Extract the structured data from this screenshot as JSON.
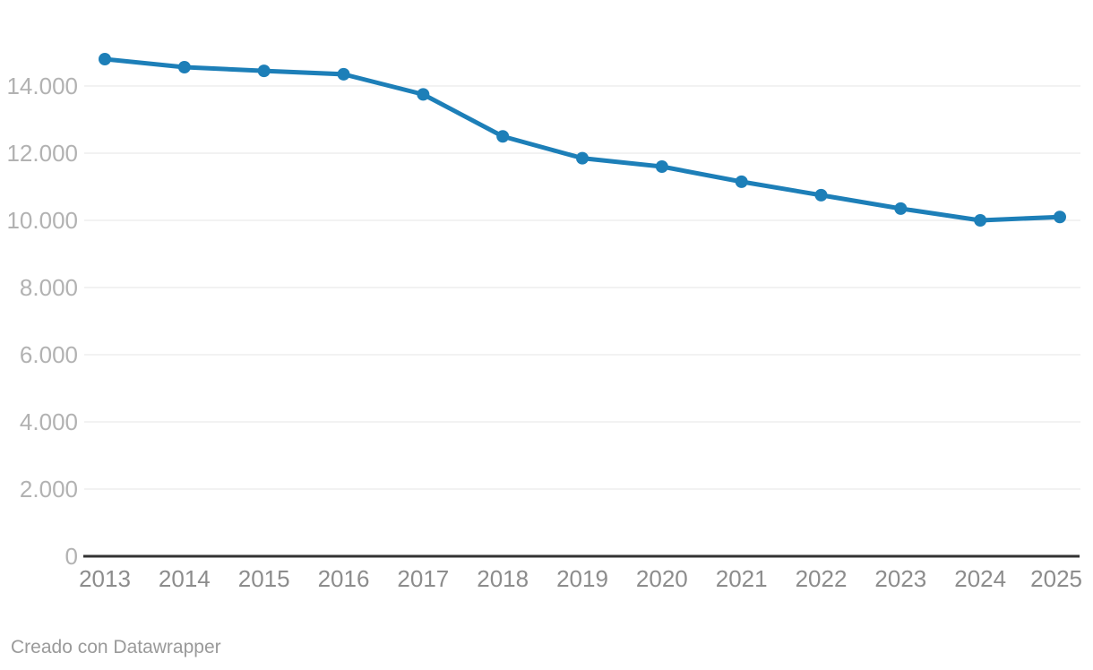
{
  "footer": {
    "credit": "Creado con Datawrapper"
  },
  "colors": {
    "line": "#1d7fb8",
    "grid": "#e4e4e4",
    "axis": "#333333",
    "y_tick_label": "#b2b2b2",
    "x_tick_label": "#8c8c8c",
    "footer_text": "#9a9a9a",
    "background": "#ffffff"
  },
  "chart_data": {
    "type": "line",
    "title": "",
    "xlabel": "",
    "ylabel": "",
    "x": [
      2013,
      2014,
      2015,
      2016,
      2017,
      2018,
      2019,
      2020,
      2021,
      2022,
      2023,
      2024,
      2025
    ],
    "values": [
      14800,
      14560,
      14450,
      14350,
      13750,
      12500,
      11850,
      11600,
      11150,
      10750,
      10350,
      10000,
      10100
    ],
    "ylim": [
      0,
      15000
    ],
    "y_ticks": [
      {
        "value": 0,
        "label": "0"
      },
      {
        "value": 2000,
        "label": "2.000"
      },
      {
        "value": 4000,
        "label": "4.000"
      },
      {
        "value": 6000,
        "label": "6.000"
      },
      {
        "value": 8000,
        "label": "8.000"
      },
      {
        "value": 10000,
        "label": "10.000"
      },
      {
        "value": 12000,
        "label": "12.000"
      },
      {
        "value": 14000,
        "label": "14.000"
      }
    ],
    "grid": true,
    "legend": "none",
    "markers": true,
    "number_format": "thousands separated by dot (es)"
  }
}
